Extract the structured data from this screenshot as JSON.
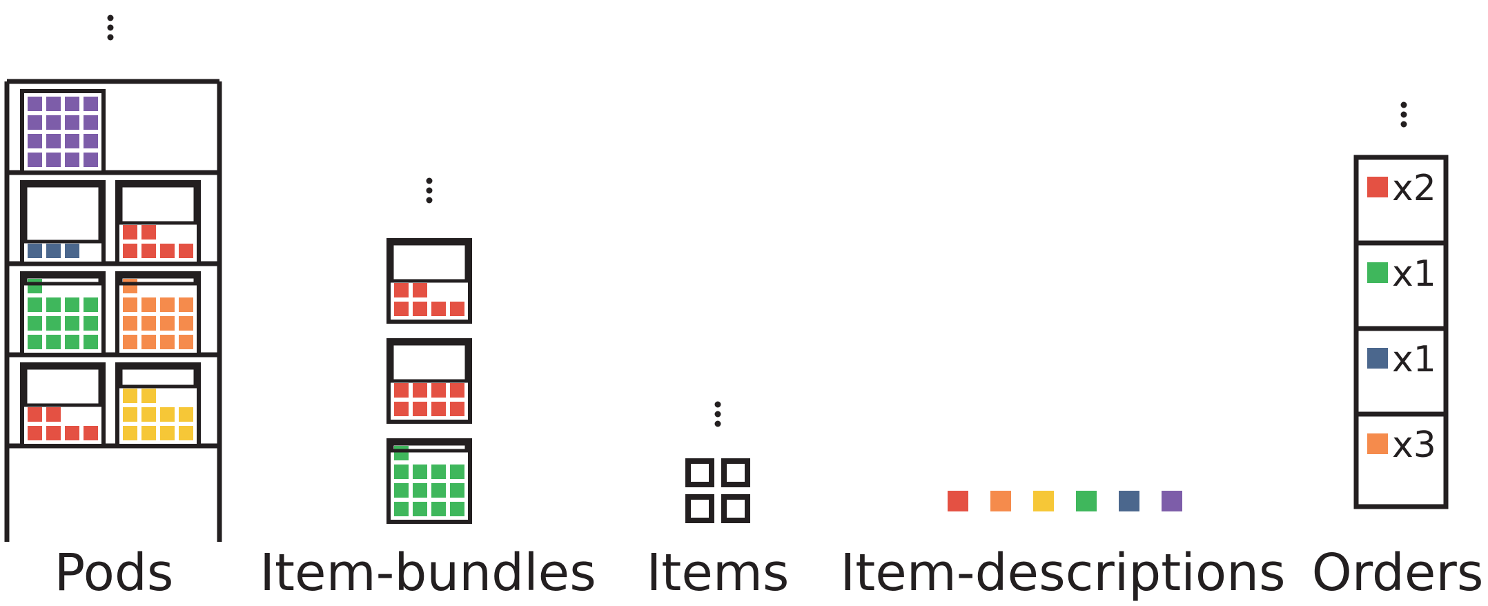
{
  "colors": {
    "stroke": "#231f20",
    "red": "#e45143",
    "orange": "#f58b4c",
    "yellow": "#f6c737",
    "green": "#3fb75c",
    "blue": "#4b678d",
    "purple": "#7d5da9"
  },
  "labels": {
    "pods": "Pods",
    "item_bundles": "Item-bundles",
    "items": "Items",
    "item_descriptions": "Item-descriptions",
    "orders": "Orders"
  },
  "pods": {
    "levels": [
      {
        "bins": [
          {
            "color": "purple",
            "fill": 1.0
          }
        ]
      },
      {
        "bins": [
          {
            "color": "blue",
            "fill": 0.2
          },
          {
            "color": "red",
            "fill": 0.35
          }
        ]
      },
      {
        "bins": [
          {
            "color": "green",
            "fill": 0.8
          },
          {
            "color": "orange",
            "fill": 0.8
          }
        ]
      },
      {
        "bins": [
          {
            "color": "red",
            "fill": 0.35
          },
          {
            "color": "yellow",
            "fill": 0.6
          }
        ]
      }
    ]
  },
  "item_bundles": [
    {
      "color": "red",
      "fill": 0.35
    },
    {
      "color": "red",
      "fill": 0.5
    },
    {
      "color": "green",
      "fill": 0.8
    }
  ],
  "items": {
    "count": 4
  },
  "item_descriptions": [
    "red",
    "orange",
    "yellow",
    "green",
    "blue",
    "purple"
  ],
  "orders": {
    "lines": [
      {
        "color": "red",
        "qty": "x2"
      },
      {
        "color": "green",
        "qty": "x1"
      },
      {
        "color": "blue",
        "qty": "x1"
      },
      {
        "color": "orange",
        "qty": "x3"
      }
    ]
  }
}
